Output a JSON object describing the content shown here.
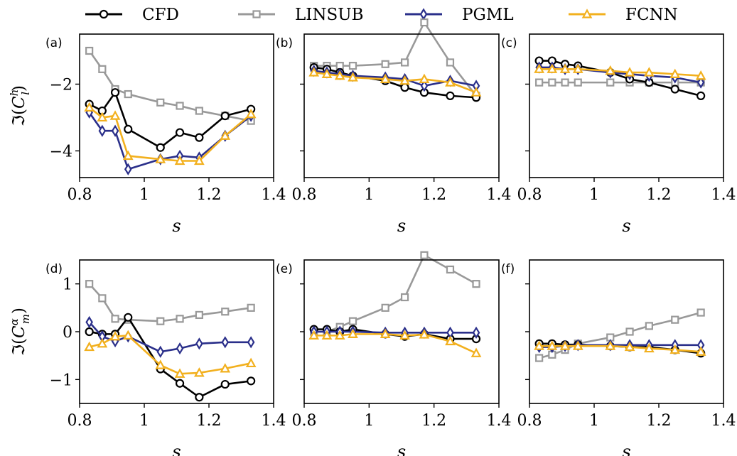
{
  "legend": [
    {
      "name": "CFD",
      "color": "#000000",
      "marker": "circle"
    },
    {
      "name": "LINSUB",
      "color": "#999999",
      "marker": "square"
    },
    {
      "name": "PGML",
      "color": "#2a2f8a",
      "marker": "diamond"
    },
    {
      "name": "FCNN",
      "color": "#f2b01e",
      "marker": "triangle"
    }
  ],
  "row_ylabels": [
    "ℑ(C_l^h)",
    "ℑ(C_m^α)"
  ],
  "chart_data": [
    {
      "type": "line",
      "panel": "(a)",
      "xlabel": "s",
      "ylabel": "ℑ(C_l^h)",
      "xlim": [
        0.8,
        1.4
      ],
      "ylim": [
        -4.8,
        -0.5
      ],
      "xticks": [
        0.8,
        1.0,
        1.2,
        1.4
      ],
      "yticks": [
        -4,
        -2
      ],
      "x": [
        0.83,
        0.87,
        0.91,
        0.95,
        1.05,
        1.11,
        1.17,
        1.25,
        1.33
      ],
      "series": [
        {
          "name": "CFD",
          "values": [
            -2.6,
            -2.8,
            -2.25,
            -3.35,
            -3.9,
            -3.45,
            -3.6,
            -2.95,
            -2.75
          ]
        },
        {
          "name": "LINSUB",
          "values": [
            -1.0,
            -1.55,
            -2.15,
            -2.3,
            -2.55,
            -2.65,
            -2.8,
            -2.95,
            -3.1
          ]
        },
        {
          "name": "PGML",
          "values": [
            -2.85,
            -3.4,
            -3.4,
            -4.55,
            -4.25,
            -4.15,
            -4.2,
            -3.55,
            -2.95
          ]
        },
        {
          "name": "FCNN",
          "values": [
            -2.7,
            -3.0,
            -2.95,
            -4.15,
            -4.25,
            -4.3,
            -4.3,
            -3.55,
            -2.9
          ]
        }
      ]
    },
    {
      "type": "line",
      "panel": "(b)",
      "xlabel": "s",
      "ylabel": "",
      "xlim": [
        0.8,
        1.4
      ],
      "ylim": [
        -4.8,
        -0.5
      ],
      "xticks": [
        0.8,
        1.0,
        1.2,
        1.4
      ],
      "yticks": [
        -4,
        -2
      ],
      "x": [
        0.83,
        0.87,
        0.91,
        0.95,
        1.05,
        1.11,
        1.17,
        1.25,
        1.33
      ],
      "series": [
        {
          "name": "CFD",
          "values": [
            -1.5,
            -1.55,
            -1.65,
            -1.75,
            -1.9,
            -2.1,
            -2.25,
            -2.35,
            -2.4
          ]
        },
        {
          "name": "LINSUB",
          "values": [
            -1.45,
            -1.45,
            -1.45,
            -1.45,
            -1.4,
            -1.35,
            -0.15,
            -1.35,
            -2.35
          ]
        },
        {
          "name": "PGML",
          "values": [
            -1.6,
            -1.65,
            -1.7,
            -1.75,
            -1.8,
            -1.85,
            -2.05,
            -1.9,
            -2.05
          ]
        },
        {
          "name": "FCNN",
          "values": [
            -1.65,
            -1.7,
            -1.75,
            -1.8,
            -1.85,
            -1.9,
            -1.85,
            -1.95,
            -2.25
          ]
        }
      ]
    },
    {
      "type": "line",
      "panel": "(c)",
      "xlabel": "s",
      "ylabel": "",
      "xlim": [
        0.8,
        1.4
      ],
      "ylim": [
        -4.8,
        -0.5
      ],
      "xticks": [
        0.8,
        1.0,
        1.2,
        1.4
      ],
      "yticks": [
        -4,
        -2
      ],
      "x": [
        0.83,
        0.87,
        0.91,
        0.95,
        1.05,
        1.11,
        1.17,
        1.25,
        1.33
      ],
      "series": [
        {
          "name": "CFD",
          "values": [
            -1.3,
            -1.3,
            -1.4,
            -1.45,
            -1.65,
            -1.85,
            -1.95,
            -2.15,
            -2.35
          ]
        },
        {
          "name": "LINSUB",
          "values": [
            -1.95,
            -1.95,
            -1.95,
            -1.95,
            -1.95,
            -1.95,
            -1.95,
            -1.95,
            -1.95
          ]
        },
        {
          "name": "PGML",
          "values": [
            -1.5,
            -1.5,
            -1.55,
            -1.55,
            -1.65,
            -1.7,
            -1.75,
            -1.8,
            -1.95
          ]
        },
        {
          "name": "FCNN",
          "values": [
            -1.55,
            -1.55,
            -1.55,
            -1.55,
            -1.6,
            -1.65,
            -1.65,
            -1.7,
            -1.75
          ]
        }
      ]
    },
    {
      "type": "line",
      "panel": "(d)",
      "xlabel": "s",
      "ylabel": "ℑ(C_m^α)",
      "xlim": [
        0.8,
        1.4
      ],
      "ylim": [
        -1.5,
        1.5
      ],
      "xticks": [
        0.8,
        1.0,
        1.2,
        1.4
      ],
      "yticks": [
        -1,
        0,
        1
      ],
      "x": [
        0.83,
        0.87,
        0.91,
        0.95,
        1.05,
        1.11,
        1.17,
        1.25,
        1.33
      ],
      "series": [
        {
          "name": "CFD",
          "values": [
            0.0,
            -0.05,
            -0.05,
            0.3,
            -0.78,
            -1.08,
            -1.37,
            -1.1,
            -1.03
          ]
        },
        {
          "name": "LINSUB",
          "values": [
            1.0,
            0.7,
            0.27,
            0.25,
            0.22,
            0.27,
            0.35,
            0.42,
            0.5
          ]
        },
        {
          "name": "PGML",
          "values": [
            0.2,
            -0.1,
            -0.2,
            -0.1,
            -0.42,
            -0.35,
            -0.25,
            -0.22,
            -0.22
          ]
        },
        {
          "name": "FCNN",
          "values": [
            -0.32,
            -0.25,
            -0.1,
            -0.08,
            -0.7,
            -0.88,
            -0.86,
            -0.77,
            -0.66
          ]
        }
      ]
    },
    {
      "type": "line",
      "panel": "(e)",
      "xlabel": "s",
      "ylabel": "",
      "xlim": [
        0.8,
        1.4
      ],
      "ylim": [
        -1.5,
        1.5
      ],
      "xticks": [
        0.8,
        1.0,
        1.2,
        1.4
      ],
      "yticks": [
        -1,
        0,
        1
      ],
      "x": [
        0.83,
        0.87,
        0.91,
        0.95,
        1.05,
        1.11,
        1.17,
        1.25,
        1.33
      ],
      "series": [
        {
          "name": "CFD",
          "values": [
            0.05,
            0.05,
            0.0,
            0.05,
            -0.05,
            -0.1,
            -0.05,
            -0.15,
            -0.15
          ]
        },
        {
          "name": "LINSUB",
          "values": [
            0.0,
            0.0,
            0.1,
            0.22,
            0.5,
            0.72,
            1.6,
            1.3,
            1.0
          ]
        },
        {
          "name": "PGML",
          "values": [
            0.0,
            0.0,
            0.0,
            0.0,
            -0.02,
            -0.02,
            -0.02,
            -0.02,
            -0.02
          ]
        },
        {
          "name": "FCNN",
          "values": [
            -0.08,
            -0.08,
            -0.08,
            -0.05,
            -0.05,
            -0.08,
            -0.06,
            -0.2,
            -0.45
          ]
        }
      ]
    },
    {
      "type": "line",
      "panel": "(f)",
      "xlabel": "s",
      "ylabel": "",
      "xlim": [
        0.8,
        1.4
      ],
      "ylim": [
        -1.5,
        1.5
      ],
      "xticks": [
        0.8,
        1.0,
        1.2,
        1.4
      ],
      "yticks": [
        -1,
        0,
        1
      ],
      "x": [
        0.83,
        0.87,
        0.91,
        0.95,
        1.05,
        1.11,
        1.17,
        1.25,
        1.33
      ],
      "series": [
        {
          "name": "CFD",
          "values": [
            -0.25,
            -0.25,
            -0.27,
            -0.27,
            -0.3,
            -0.32,
            -0.32,
            -0.38,
            -0.45
          ]
        },
        {
          "name": "LINSUB",
          "values": [
            -0.55,
            -0.48,
            -0.38,
            -0.25,
            -0.12,
            0.0,
            0.12,
            0.25,
            0.4
          ]
        },
        {
          "name": "PGML",
          "values": [
            -0.32,
            -0.32,
            -0.3,
            -0.28,
            -0.28,
            -0.28,
            -0.28,
            -0.28,
            -0.28
          ]
        },
        {
          "name": "FCNN",
          "values": [
            -0.3,
            -0.3,
            -0.3,
            -0.3,
            -0.3,
            -0.32,
            -0.35,
            -0.38,
            -0.42
          ]
        }
      ]
    }
  ]
}
